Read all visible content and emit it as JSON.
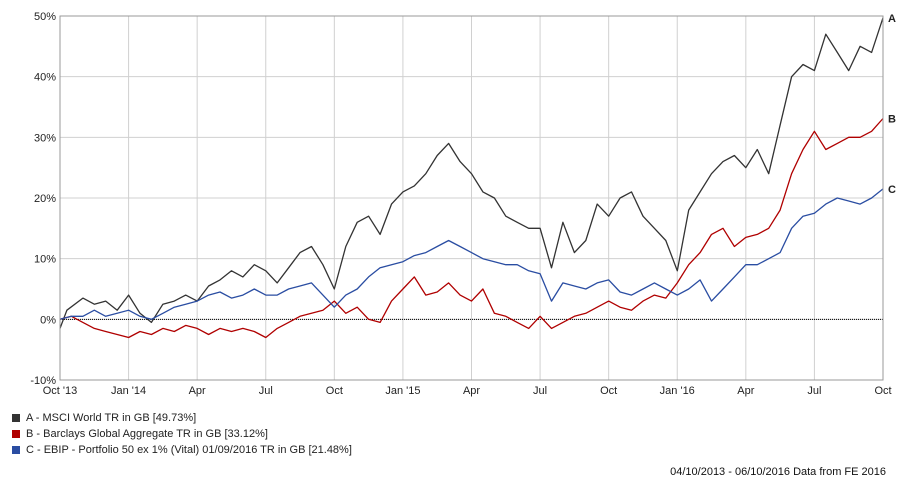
{
  "chart_data": {
    "type": "line",
    "x_ticks": [
      "Oct '13",
      "Jan '14",
      "Apr",
      "Jul",
      "Oct",
      "Jan '15",
      "Apr",
      "Jul",
      "Oct",
      "Jan '16",
      "Apr",
      "Jul",
      "Oct"
    ],
    "y_ticks": [
      "-10%",
      "0%",
      "10%",
      "20%",
      "30%",
      "40%",
      "50%"
    ],
    "ylim": [
      -10,
      50
    ],
    "grid": true,
    "legend_position": "bottom-left",
    "series": [
      {
        "name": "A - MSCI World TR in GB [49.73%]",
        "end_label": "A",
        "color": "#333333",
        "values": [
          [
            0,
            -1.5
          ],
          [
            0.3,
            1.5
          ],
          [
            1,
            3.5
          ],
          [
            1.5,
            2.5
          ],
          [
            2,
            3
          ],
          [
            2.5,
            1.5
          ],
          [
            3,
            4
          ],
          [
            3.5,
            1
          ],
          [
            4,
            -0.5
          ],
          [
            4.5,
            2.5
          ],
          [
            5,
            3
          ],
          [
            5.5,
            4
          ],
          [
            6,
            3
          ],
          [
            6.5,
            5.5
          ],
          [
            7,
            6.5
          ],
          [
            7.5,
            8
          ],
          [
            8,
            7
          ],
          [
            8.5,
            9
          ],
          [
            9,
            8
          ],
          [
            9.5,
            6
          ],
          [
            10,
            8.5
          ],
          [
            10.5,
            11
          ],
          [
            11,
            12
          ],
          [
            11.5,
            9
          ],
          [
            12,
            5
          ],
          [
            12.5,
            12
          ],
          [
            13,
            16
          ],
          [
            13.5,
            17
          ],
          [
            14,
            14
          ],
          [
            14.5,
            19
          ],
          [
            15,
            21
          ],
          [
            15.5,
            22
          ],
          [
            16,
            24
          ],
          [
            16.5,
            27
          ],
          [
            17,
            29
          ],
          [
            17.5,
            26
          ],
          [
            18,
            24
          ],
          [
            18.5,
            21
          ],
          [
            19,
            20
          ],
          [
            19.5,
            17
          ],
          [
            20,
            16
          ],
          [
            20.5,
            15
          ],
          [
            21,
            15
          ],
          [
            21.5,
            8.5
          ],
          [
            22,
            16
          ],
          [
            22.5,
            11
          ],
          [
            23,
            13
          ],
          [
            23.5,
            19
          ],
          [
            24,
            17
          ],
          [
            24.5,
            20
          ],
          [
            25,
            21
          ],
          [
            25.5,
            17
          ],
          [
            26,
            15
          ],
          [
            26.5,
            13
          ],
          [
            27,
            8
          ],
          [
            27.5,
            18
          ],
          [
            28,
            21
          ],
          [
            28.5,
            24
          ],
          [
            29,
            26
          ],
          [
            29.5,
            27
          ],
          [
            30,
            25
          ],
          [
            30.5,
            28
          ],
          [
            31,
            24
          ],
          [
            31.5,
            32
          ],
          [
            32,
            40
          ],
          [
            32.5,
            42
          ],
          [
            33,
            41
          ],
          [
            33.5,
            47
          ],
          [
            34,
            44
          ],
          [
            34.5,
            41
          ],
          [
            35,
            45
          ],
          [
            35.5,
            44
          ],
          [
            36,
            49.7
          ]
        ]
      },
      {
        "name": "B - Barclays Global Aggregate TR in GB [33.12%]",
        "end_label": "B",
        "color": "#b00000",
        "values": [
          [
            0,
            0
          ],
          [
            0.5,
            0.5
          ],
          [
            1,
            -0.5
          ],
          [
            1.5,
            -1.5
          ],
          [
            2,
            -2
          ],
          [
            2.5,
            -2.5
          ],
          [
            3,
            -3
          ],
          [
            3.5,
            -2
          ],
          [
            4,
            -2.5
          ],
          [
            4.5,
            -1.5
          ],
          [
            5,
            -2
          ],
          [
            5.5,
            -1
          ],
          [
            6,
            -1.5
          ],
          [
            6.5,
            -2.5
          ],
          [
            7,
            -1.5
          ],
          [
            7.5,
            -2
          ],
          [
            8,
            -1.5
          ],
          [
            8.5,
            -2
          ],
          [
            9,
            -3
          ],
          [
            9.5,
            -1.5
          ],
          [
            10,
            -0.5
          ],
          [
            10.5,
            0.5
          ],
          [
            11,
            1
          ],
          [
            11.5,
            1.5
          ],
          [
            12,
            3
          ],
          [
            12.5,
            1
          ],
          [
            13,
            2
          ],
          [
            13.5,
            0
          ],
          [
            14,
            -0.5
          ],
          [
            14.5,
            3
          ],
          [
            15,
            5
          ],
          [
            15.5,
            7
          ],
          [
            16,
            4
          ],
          [
            16.5,
            4.5
          ],
          [
            17,
            6
          ],
          [
            17.5,
            4
          ],
          [
            18,
            3
          ],
          [
            18.5,
            5
          ],
          [
            19,
            1
          ],
          [
            19.5,
            0.5
          ],
          [
            20,
            -0.5
          ],
          [
            20.5,
            -1.5
          ],
          [
            21,
            0.5
          ],
          [
            21.5,
            -1.5
          ],
          [
            22,
            -0.5
          ],
          [
            22.5,
            0.5
          ],
          [
            23,
            1
          ],
          [
            23.5,
            2
          ],
          [
            24,
            3
          ],
          [
            24.5,
            2
          ],
          [
            25,
            1.5
          ],
          [
            25.5,
            3
          ],
          [
            26,
            4
          ],
          [
            26.5,
            3.5
          ],
          [
            27,
            6
          ],
          [
            27.5,
            9
          ],
          [
            28,
            11
          ],
          [
            28.5,
            14
          ],
          [
            29,
            15
          ],
          [
            29.5,
            12
          ],
          [
            30,
            13.5
          ],
          [
            30.5,
            14
          ],
          [
            31,
            15
          ],
          [
            31.5,
            18
          ],
          [
            32,
            24
          ],
          [
            32.5,
            28
          ],
          [
            33,
            31
          ],
          [
            33.5,
            28
          ],
          [
            34,
            29
          ],
          [
            34.5,
            30
          ],
          [
            35,
            30
          ],
          [
            35.5,
            31
          ],
          [
            36,
            33.1
          ]
        ]
      },
      {
        "name": "C - EBIP - Portfolio 50 ex 1% (Vital) 01/09/2016 TR in GB [21.48%]",
        "end_label": "C",
        "color": "#2a4da2",
        "values": [
          [
            0,
            0
          ],
          [
            0.5,
            0.5
          ],
          [
            1,
            0.5
          ],
          [
            1.5,
            1.5
          ],
          [
            2,
            0.5
          ],
          [
            2.5,
            1
          ],
          [
            3,
            1.5
          ],
          [
            3.5,
            0.5
          ],
          [
            4,
            0
          ],
          [
            4.5,
            1
          ],
          [
            5,
            2
          ],
          [
            5.5,
            2.5
          ],
          [
            6,
            3
          ],
          [
            6.5,
            4
          ],
          [
            7,
            4.5
          ],
          [
            7.5,
            3.5
          ],
          [
            8,
            4
          ],
          [
            8.5,
            5
          ],
          [
            9,
            4
          ],
          [
            9.5,
            4
          ],
          [
            10,
            5
          ],
          [
            10.5,
            5.5
          ],
          [
            11,
            6
          ],
          [
            11.5,
            4
          ],
          [
            12,
            2
          ],
          [
            12.5,
            4
          ],
          [
            13,
            5
          ],
          [
            13.5,
            7
          ],
          [
            14,
            8.5
          ],
          [
            14.5,
            9
          ],
          [
            15,
            9.5
          ],
          [
            15.5,
            10.5
          ],
          [
            16,
            11
          ],
          [
            16.5,
            12
          ],
          [
            17,
            13
          ],
          [
            17.5,
            12
          ],
          [
            18,
            11
          ],
          [
            18.5,
            10
          ],
          [
            19,
            9.5
          ],
          [
            19.5,
            9
          ],
          [
            20,
            9
          ],
          [
            20.5,
            8
          ],
          [
            21,
            7.5
          ],
          [
            21.5,
            3
          ],
          [
            22,
            6
          ],
          [
            22.5,
            5.5
          ],
          [
            23,
            5
          ],
          [
            23.5,
            6
          ],
          [
            24,
            6.5
          ],
          [
            24.5,
            4.5
          ],
          [
            25,
            4
          ],
          [
            25.5,
            5
          ],
          [
            26,
            6
          ],
          [
            26.5,
            5
          ],
          [
            27,
            4
          ],
          [
            27.5,
            5
          ],
          [
            28,
            6.5
          ],
          [
            28.5,
            3
          ],
          [
            29,
            5
          ],
          [
            29.5,
            7
          ],
          [
            30,
            9
          ],
          [
            30.5,
            9
          ],
          [
            31,
            10
          ],
          [
            31.5,
            11
          ],
          [
            32,
            15
          ],
          [
            32.5,
            17
          ],
          [
            33,
            17.5
          ],
          [
            33.5,
            19
          ],
          [
            34,
            20
          ],
          [
            34.5,
            19.5
          ],
          [
            35,
            19
          ],
          [
            35.5,
            20
          ],
          [
            36,
            21.5
          ]
        ]
      }
    ]
  },
  "footer": {
    "date_range": "04/10/2013 - 06/10/2016 Data from FE 2016"
  }
}
